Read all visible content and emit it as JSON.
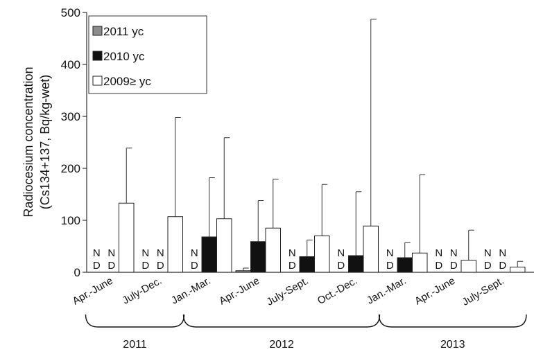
{
  "chart_data": {
    "type": "bar",
    "ylabel_line1": "Radiocesium concentration",
    "ylabel_line2": "(Cs134+137, Bq/kg-wet)",
    "ylim": [
      0,
      500
    ],
    "yticks": [
      0,
      100,
      200,
      300,
      400,
      500
    ],
    "categories": [
      "Apr.-June",
      "July-Dec.",
      "Jan.-Mar.",
      "Apr.-June",
      "July-Sept.",
      "Oct.-Dec.",
      "Jan.-Mar.",
      "Apr.-June",
      "July-Sept."
    ],
    "years": [
      {
        "label": "2011",
        "from": 0,
        "to": 1
      },
      {
        "label": "2012",
        "from": 2,
        "to": 5
      },
      {
        "label": "2013",
        "from": 6,
        "to": 8
      }
    ],
    "nd_label": [
      "N",
      "D"
    ],
    "legend_position": "top-left",
    "grid": false,
    "series": [
      {
        "name": "2011 yc",
        "color": "#8c8c8c",
        "values": [
          null,
          null,
          null,
          3,
          null,
          null,
          null,
          null,
          null
        ],
        "error": [
          null,
          null,
          null,
          8,
          null,
          null,
          null,
          null,
          null
        ],
        "nd": [
          true,
          true,
          true,
          false,
          true,
          true,
          true,
          true,
          true
        ]
      },
      {
        "name": "2010 yc",
        "color": "#111111",
        "values": [
          null,
          null,
          68,
          59,
          30,
          32,
          28,
          null,
          null
        ],
        "error": [
          null,
          null,
          182,
          138,
          62,
          155,
          57,
          null,
          null
        ],
        "nd": [
          true,
          true,
          false,
          false,
          false,
          false,
          false,
          true,
          true
        ]
      },
      {
        "name": "2009≥ yc",
        "color": "#ffffff",
        "values": [
          133,
          107,
          103,
          85,
          70,
          89,
          37,
          23,
          10
        ],
        "error": [
          239,
          298,
          259,
          179,
          169,
          487,
          188,
          81,
          21
        ],
        "nd": [
          false,
          false,
          false,
          false,
          false,
          false,
          false,
          false,
          false
        ]
      }
    ]
  }
}
